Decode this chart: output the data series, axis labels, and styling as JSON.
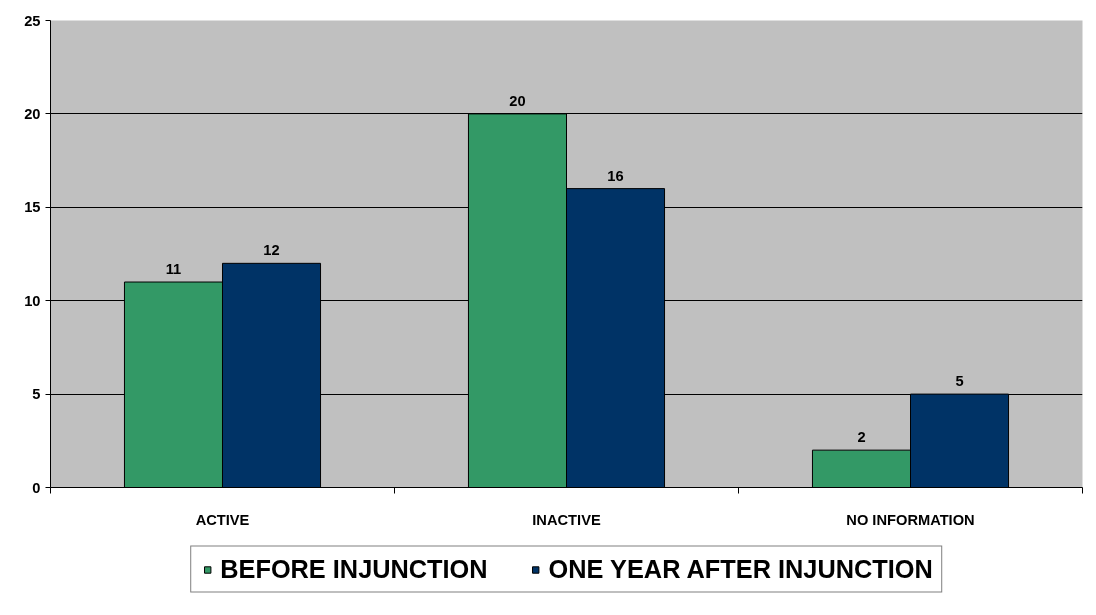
{
  "chart_data": {
    "type": "bar",
    "categories": [
      "ACTIVE",
      "INACTIVE",
      "NO INFORMATION"
    ],
    "series": [
      {
        "name": "BEFORE INJUNCTION",
        "color": "#339966",
        "values": [
          11,
          20,
          2
        ]
      },
      {
        "name": "ONE YEAR AFTER INJUNCTION",
        "color": "#003366",
        "values": [
          12,
          16,
          5
        ]
      }
    ],
    "ylim": [
      0,
      25
    ],
    "yticks": [
      0,
      5,
      10,
      15,
      20,
      25
    ],
    "grid": "y",
    "data_labels": true,
    "legend": "bottom"
  }
}
